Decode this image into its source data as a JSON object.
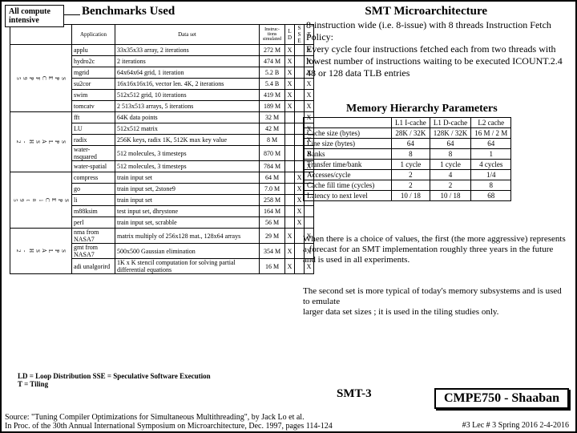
{
  "callout": "All compute intensive",
  "benchTitle": "Benchmarks Used",
  "smtTitle": "SMT Microarchitecture",
  "smtDesc": "8-instruction wide (i.e. 8-issue) with 8 threads Instruction Fetch Policy:\nEvery cycle four instructions fetched each from two threads with lowest number of instructions waiting to be executed  ICOUNT.2.4\n48 or 128 data TLB entries",
  "memTitle": "Memory Hierarchy Parameters",
  "memHeaders": [
    "",
    "L1 I-cache",
    "L1 D-cache",
    "L2 cache"
  ],
  "memRows": [
    [
      "Cache size (bytes)",
      "28K / 32K",
      "128K / 32K",
      "16 M / 2 M"
    ],
    [
      "Line size (bytes)",
      "64",
      "64",
      "64"
    ],
    [
      "Banks",
      "8",
      "8",
      "1"
    ],
    [
      "Transfer time/bank",
      "1 cycle",
      "1 cycle",
      "4 cycles"
    ],
    [
      "Accesses/cycle",
      "2",
      "4",
      "1/4"
    ],
    [
      "Cache fill time (cycles)",
      "2",
      "2",
      "8"
    ],
    [
      "Latency to next level",
      "10 / 18",
      "10 / 18",
      "68"
    ]
  ],
  "memNote1": "When there is a choice of values, the first (the more aggressive) represents a forecast for an SMT implementation roughly three years in the future and is used in all experiments.",
  "memNote2": "The second set is more typical of today's memory subsystems and is used to emulate\nlarger data set sizes ; it is used in the tiling studies only.",
  "benchHeaders": [
    "",
    "Application",
    "Data set",
    "Instructions simulated",
    "LD",
    "SSE",
    "T"
  ],
  "benchGroups": [
    {
      "label": "SPECFP95",
      "rows": [
        {
          "app": "applu",
          "ds": "33x35x33 array, 2 iterations",
          "ins": "272 M",
          "ld": "X",
          "sse": "",
          "t": "X"
        },
        {
          "app": "hydro2c",
          "ds": "2 iterations",
          "ins": "474 M",
          "ld": "X",
          "sse": "",
          "t": "X"
        },
        {
          "app": "mgrid",
          "ds": "64x64x64 grid, 1 iteration",
          "ins": "5.2 B",
          "ld": "X",
          "sse": "",
          "t": "X"
        },
        {
          "app": "su2cor",
          "ds": "16x16x16x16, vector len. 4K, 2 iterations",
          "ins": "5.4 B",
          "ld": "X",
          "sse": "",
          "t": "X"
        },
        {
          "app": "swim",
          "ds": "512x512 grid, 10 iterations",
          "ins": "419 M",
          "ld": "X",
          "sse": "",
          "t": "X"
        },
        {
          "app": "tomcatv",
          "ds": "2 513x513 arrays, 5 iterations",
          "ins": "189 M",
          "ld": "X",
          "sse": "",
          "t": "X"
        }
      ]
    },
    {
      "label": "SPLASH-2",
      "rows": [
        {
          "app": "fft",
          "ds": "64K data points",
          "ins": "32 M",
          "ld": "",
          "sse": "",
          "t": "X"
        },
        {
          "app": "LU",
          "ds": "512x512 matrix",
          "ins": "42 M",
          "ld": "",
          "sse": "",
          "t": "X"
        },
        {
          "app": "radix",
          "ds": "256K keys, radix 1K, 512K max key value",
          "ins": "8 M",
          "ld": "",
          "sse": "",
          "t": "X"
        },
        {
          "app": "water-nsquared",
          "ds": "512 molecules, 3 timesteps",
          "ins": "870 M",
          "ld": "",
          "sse": "",
          "t": "X"
        },
        {
          "app": "water-spatial",
          "ds": "512 molecules, 3 timesteps",
          "ins": "784 M",
          "ld": "",
          "sse": "",
          "t": "X"
        }
      ]
    },
    {
      "label": "SPECint95",
      "rows": [
        {
          "app": "compress",
          "ds": "train input set",
          "ins": "64 M",
          "ld": "",
          "sse": "X",
          "t": ""
        },
        {
          "app": "go",
          "ds": "train input set, 2stone9",
          "ins": "7.0 M",
          "ld": "",
          "sse": "X",
          "t": ""
        },
        {
          "app": "li",
          "ds": "train input set",
          "ins": "258 M",
          "ld": "",
          "sse": "X",
          "t": ""
        },
        {
          "app": "m88ksim",
          "ds": "test input set, dhrystone",
          "ins": "164 M",
          "ld": "",
          "sse": "X",
          "t": ""
        },
        {
          "app": "perl",
          "ds": "train input set, scrabble",
          "ins": "56 M",
          "ld": "",
          "sse": "X",
          "t": ""
        }
      ]
    },
    {
      "label": "SPLASH-2",
      "rows": [
        {
          "app": "nma from NASA7",
          "ds": "matrix multiply of 256x128 mat., 128x64 arrays",
          "ins": "29 M",
          "ld": "X",
          "sse": "",
          "t": "X"
        },
        {
          "app": "gmt from NASA7",
          "ds": "500x500 Gaussian elimination",
          "ins": "354 M",
          "ld": "X",
          "sse": "",
          "t": "X"
        },
        {
          "app": "adi unalgorird",
          "ds": "1K x K stencil computation for solving partial differential equations",
          "ins": "16 M",
          "ld": "X",
          "sse": "",
          "t": "X"
        }
      ]
    }
  ],
  "legend": "LD = Loop Distribution   SSE = Speculative Software Execution\nT = Tiling",
  "smt3": "SMT-3",
  "courseBox": "CMPE750 - Shaaban",
  "source1": "Source: \"Tuning Compiler Optimizations for Simultaneous Multithreading\", by Jack Lo et al.",
  "source2": "In Proc. of the 30th Annual International Symposium on Microarchitecture, Dec. 1997, pages 114-124",
  "footerRight": "#3   Lec # 3   Spring 2016   2-4-2016"
}
